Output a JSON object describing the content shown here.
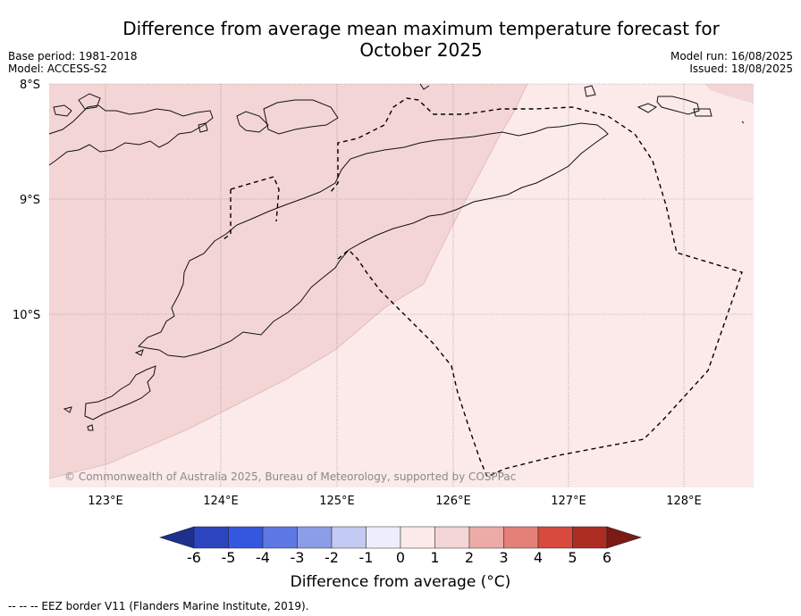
{
  "title_line1": "Difference from average mean maximum temperature forecast for",
  "title_line2": "October 2025",
  "meta_left": {
    "base_period": "Base period: 1981-2018",
    "model": "Model: ACCESS-S2"
  },
  "meta_right": {
    "model_run": "Model run: 16/08/2025",
    "issued": "Issued: 18/08/2025"
  },
  "map": {
    "lat_labels": [
      "8°S",
      "9°S",
      "10°S"
    ],
    "lon_labels": [
      "123°E",
      "124°E",
      "125°E",
      "126°E",
      "127°E",
      "128°E"
    ],
    "copyright": "© Commonwealth of Australia 2025, Bureau of Meteorology, supported by COSPPac",
    "colors": {
      "anomaly_1_2": "#f4d5d5",
      "anomaly_0_1": "#fbeae9",
      "ocean_bg": "#fbeae9"
    }
  },
  "colorbar": {
    "ticks": [
      "-6",
      "-5",
      "-4",
      "-3",
      "-2",
      "-1",
      "0",
      "1",
      "2",
      "3",
      "4",
      "5",
      "6"
    ],
    "colors": [
      "#1e2f8c",
      "#2a45bf",
      "#3457e0",
      "#5d78e4",
      "#8c9de8",
      "#c2c9f2",
      "#eceefb",
      "#fbeae9",
      "#f4d5d5",
      "#edaba7",
      "#e48077",
      "#d84a3d",
      "#ad2c22",
      "#7a1b16"
    ],
    "label": "Difference from average (°C)"
  },
  "eez_note": "--  --  -- EEZ border V11 (Flanders Marine Institute, 2019)."
}
